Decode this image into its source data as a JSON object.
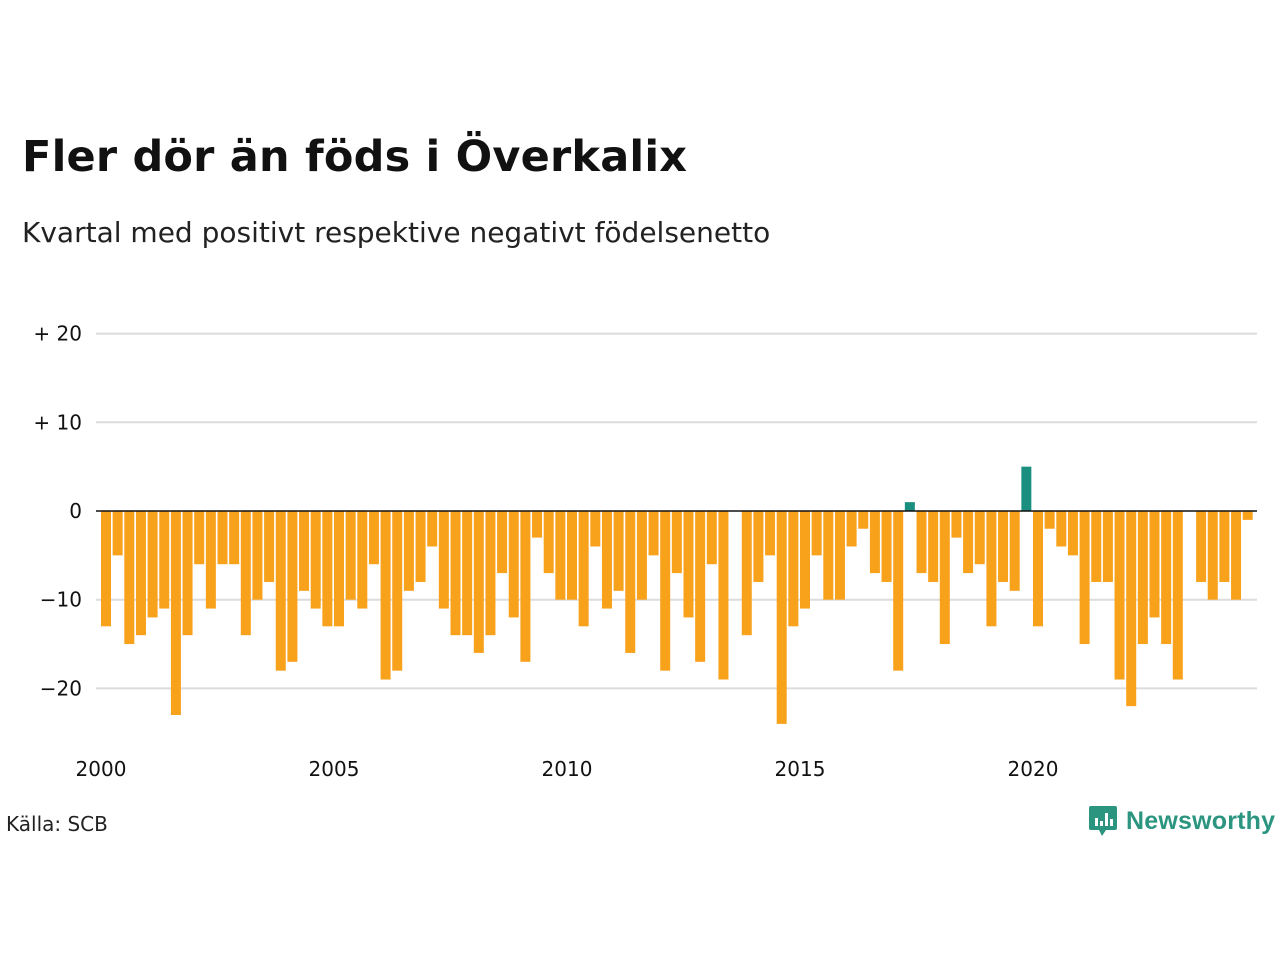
{
  "title": "Fler dör än föds i Överkalix",
  "subtitle": "Kvartal med positivt respektive negativt födelsenetto",
  "source": "Källa: SCB",
  "brand": "Newsworthy",
  "colors": {
    "negative": "#f8a11b",
    "positive": "#1b8f7f",
    "grid": "#dcdcdc",
    "zero": "#111111"
  },
  "chart_data": {
    "type": "bar",
    "title": "Fler dör än föds i Överkalix",
    "subtitle": "Kvartal med positivt respektive negativt födelsenetto",
    "ylim": [
      -25,
      20
    ],
    "yticks": [
      {
        "value": 20,
        "label": "+ 20"
      },
      {
        "value": 10,
        "label": "+ 10"
      },
      {
        "value": 0,
        "label": "0"
      },
      {
        "value": -10,
        "label": "−10"
      },
      {
        "value": -20,
        "label": "−20"
      }
    ],
    "xticks": [
      "2000",
      "2005",
      "2010",
      "2015",
      "2020"
    ],
    "start_year": 2000,
    "grid": true,
    "values": [
      -13,
      -5,
      -15,
      -14,
      -12,
      -11,
      -23,
      -14,
      -6,
      -11,
      -6,
      -6,
      -14,
      -10,
      -8,
      -18,
      -17,
      -9,
      -11,
      -13,
      -13,
      -10,
      -11,
      -6,
      -19,
      -18,
      -9,
      -8,
      -4,
      -11,
      -14,
      -14,
      -16,
      -14,
      -7,
      -12,
      -17,
      -3,
      -7,
      -10,
      -10,
      -13,
      -4,
      -11,
      -9,
      -16,
      -10,
      -5,
      -18,
      -7,
      -12,
      -17,
      -6,
      -19,
      0,
      -14,
      -8,
      -5,
      -24,
      -13,
      -11,
      -5,
      -10,
      -10,
      -4,
      -2,
      -7,
      -8,
      -18,
      1,
      -7,
      -8,
      -15,
      -3,
      -7,
      -6,
      -13,
      -8,
      -9,
      5,
      -13,
      -2,
      -4,
      -5,
      -15,
      -8,
      -8,
      -19,
      -22,
      -15,
      -12,
      -15,
      -19,
      0,
      -8,
      -10,
      -8,
      -10,
      -1
    ]
  }
}
